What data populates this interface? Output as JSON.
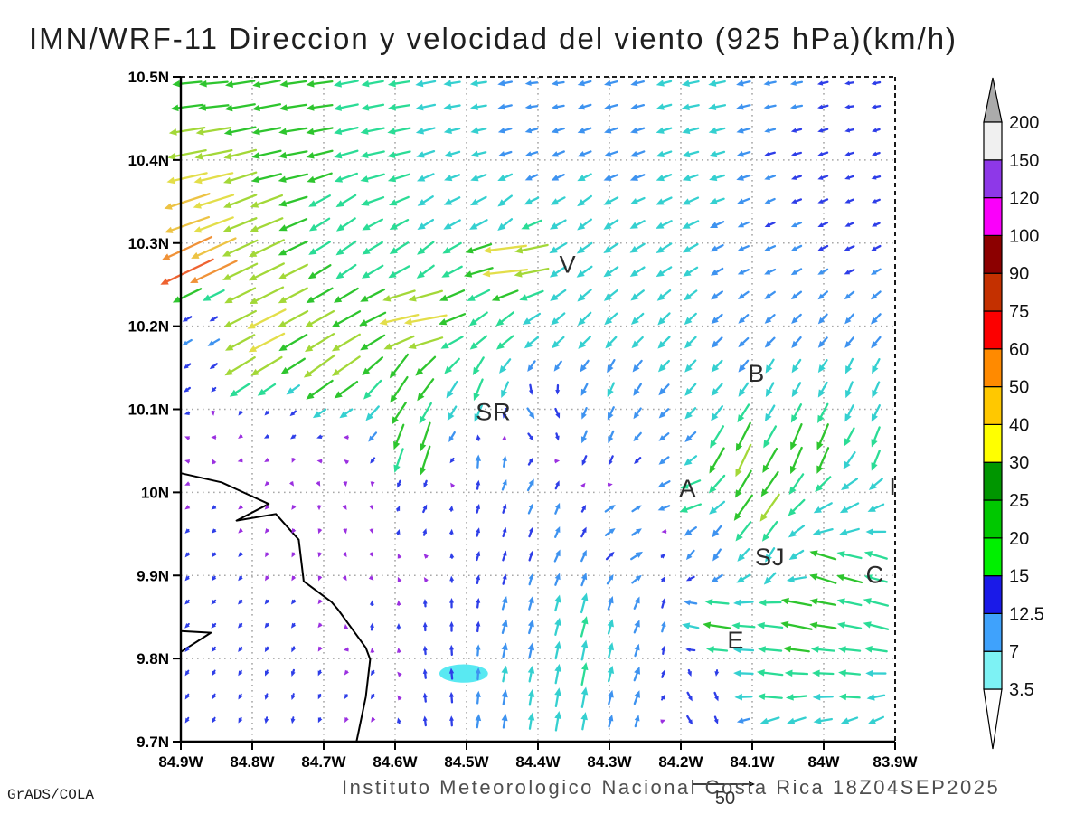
{
  "title": "IMN/WRF-11 Direccion y velocidad del viento (925 hPa)(km/h)",
  "watermark": "GrADS/COLA",
  "caption": "Instituto Meteorologico Nacional Costa Rica 18Z04SEP2025",
  "chart_data": {
    "type": "vector-field-map",
    "title": "IMN/WRF-11 Direccion y velocidad del viento (925 hPa)(km/h)",
    "units": "km/h",
    "level": "925 hPa",
    "datetime": "18Z04SEP2025",
    "source": "Instituto Meteorologico Nacional Costa Rica",
    "x_axis": {
      "tick_labels": [
        "84.9W",
        "84.8W",
        "84.7W",
        "84.6W",
        "84.5W",
        "84.4W",
        "84.3W",
        "84.2W",
        "84.1W",
        "84W",
        "83.9W"
      ],
      "lon_west_values": [
        84.9,
        84.8,
        84.7,
        84.6,
        84.5,
        84.4,
        84.3,
        84.2,
        84.1,
        84.0,
        83.9
      ]
    },
    "y_axis": {
      "tick_labels": [
        "10.5N",
        "10.4N",
        "10.3N",
        "10.2N",
        "10.1N",
        "10N",
        "9.9N",
        "9.8N",
        "9.7N"
      ],
      "lat_values": [
        10.5,
        10.4,
        10.3,
        10.2,
        10.1,
        10.0,
        9.9,
        9.8,
        9.7
      ]
    },
    "grid_lines": "dotted-gray-0.1deg",
    "colorbar": {
      "tick_values": [
        3.5,
        7,
        12.5,
        15,
        20,
        25,
        30,
        40,
        50,
        60,
        75,
        90,
        100,
        120,
        150,
        200
      ],
      "box_colors_bottom_to_top": [
        "#7df2f4",
        "#3fa2fc",
        "#1a1ae8",
        "#00f000",
        "#00c800",
        "#009600",
        "#ffff00",
        "#ffc800",
        "#ff8a00",
        "#fc0000",
        "#c43000",
        "#8c0000",
        "#fa00fa",
        "#8e38e8",
        "#f0f0f0"
      ],
      "below_min_color": "#ffffff",
      "above_max_color": "#ababab"
    },
    "arrow_speed_palette": {
      "thresholds": [
        4.5,
        10,
        14,
        19,
        24,
        30,
        36,
        42,
        47,
        53,
        58
      ],
      "colors": [
        "#9b30e0",
        "#2e3ee8",
        "#3e93f0",
        "#35d0d0",
        "#2bdc96",
        "#2ec52e",
        "#a3d838",
        "#e3de4a",
        "#edc344",
        "#f09238",
        "#ee6230",
        "#ea3b30"
      ]
    },
    "reference_arrow": {
      "speed": 50,
      "label": "50"
    },
    "grid": {
      "cols": 27,
      "rows": 28
    },
    "city_labels": [
      {
        "text": "V",
        "lon_w": 84.358,
        "lat": 10.274
      },
      {
        "text": "B",
        "lon_w": 84.094,
        "lat": 10.143
      },
      {
        "text": "SR",
        "lon_w": 84.462,
        "lat": 10.097
      },
      {
        "text": "A",
        "lon_w": 84.19,
        "lat": 10.005
      },
      {
        "text": "SJ",
        "lon_w": 84.075,
        "lat": 9.922
      },
      {
        "text": "C",
        "lon_w": 83.928,
        "lat": 9.901
      },
      {
        "text": "E",
        "lon_w": 84.123,
        "lat": 9.822
      },
      {
        "text": "I",
        "lon_w": 83.903,
        "lat": 10.007
      }
    ],
    "coastline_lon_lat": [
      [
        84.9,
        10.023
      ],
      [
        84.843,
        10.012
      ],
      [
        84.777,
        9.986
      ],
      [
        84.822,
        9.966
      ],
      [
        84.767,
        9.974
      ],
      [
        84.735,
        9.943
      ],
      [
        84.728,
        9.893
      ],
      [
        84.689,
        9.868
      ],
      [
        84.68,
        9.859
      ],
      [
        84.641,
        9.813
      ],
      [
        84.635,
        9.799
      ],
      [
        84.641,
        9.754
      ],
      [
        84.654,
        9.7
      ]
    ],
    "coast_spit_lon_lat": [
      [
        84.9,
        9.833
      ],
      [
        84.858,
        9.831
      ],
      [
        84.9,
        9.808
      ]
    ],
    "lake": {
      "lon_w": 84.504,
      "lat": 9.782,
      "rx_deg": 0.034,
      "ry_deg": 0.011,
      "color": "#59e9f2"
    },
    "wind_samples_lonw_lat_u_v": [
      [
        84.87,
        10.48,
        -26,
        -2
      ],
      [
        84.72,
        10.48,
        -24,
        -3
      ],
      [
        84.6,
        10.48,
        -20,
        -3
      ],
      [
        84.5,
        10.48,
        -15,
        -2
      ],
      [
        84.4,
        10.48,
        -11,
        -1
      ],
      [
        84.28,
        10.48,
        -12,
        -3
      ],
      [
        84.17,
        10.47,
        -16,
        -3
      ],
      [
        84.05,
        10.47,
        -11,
        -2
      ],
      [
        83.95,
        10.47,
        -8,
        -1
      ],
      [
        83.9,
        10.47,
        -8,
        -2
      ],
      [
        84.88,
        10.44,
        -33,
        -5
      ],
      [
        84.75,
        10.43,
        -26,
        -4
      ],
      [
        84.62,
        10.42,
        -22,
        -4
      ],
      [
        84.5,
        10.42,
        -14,
        -3
      ],
      [
        84.42,
        10.42,
        -11,
        -3
      ],
      [
        84.3,
        10.42,
        -12,
        -4
      ],
      [
        84.18,
        10.42,
        -15,
        -4
      ],
      [
        84.05,
        10.42,
        -9,
        -2
      ],
      [
        83.93,
        10.42,
        -7,
        -2
      ],
      [
        84.88,
        10.39,
        -36,
        -7
      ],
      [
        84.76,
        10.38,
        -27,
        -6
      ],
      [
        84.63,
        10.38,
        -22,
        -6
      ],
      [
        84.52,
        10.38,
        -14,
        -5
      ],
      [
        84.4,
        10.38,
        -11,
        -5
      ],
      [
        84.28,
        10.38,
        -13,
        -5
      ],
      [
        84.15,
        10.38,
        -14,
        -4
      ],
      [
        84.03,
        10.38,
        -9,
        -3
      ],
      [
        83.92,
        10.38,
        -8,
        -2
      ],
      [
        84.89,
        10.35,
        -42,
        -14
      ],
      [
        84.8,
        10.34,
        -30,
        -12
      ],
      [
        84.68,
        10.33,
        -17,
        -12
      ],
      [
        84.55,
        10.34,
        -14,
        -9
      ],
      [
        84.45,
        10.33,
        -12,
        -11
      ],
      [
        84.33,
        10.33,
        -13,
        -10
      ],
      [
        84.2,
        10.33,
        -15,
        -7
      ],
      [
        84.08,
        10.33,
        -9,
        -4
      ],
      [
        83.94,
        10.33,
        -7,
        -3
      ],
      [
        84.88,
        10.27,
        -50,
        -24
      ],
      [
        84.79,
        10.28,
        -33,
        -16
      ],
      [
        84.67,
        10.28,
        -18,
        -13
      ],
      [
        84.56,
        10.28,
        -15,
        -12
      ],
      [
        84.44,
        10.28,
        -44,
        -4
      ],
      [
        84.35,
        10.27,
        -14,
        -10
      ],
      [
        84.22,
        10.28,
        -14,
        -9
      ],
      [
        84.1,
        10.28,
        -10,
        -4
      ],
      [
        83.97,
        10.28,
        -9,
        -4
      ],
      [
        83.9,
        10.28,
        -9,
        -5
      ],
      [
        84.87,
        10.21,
        -5,
        -3
      ],
      [
        84.79,
        10.2,
        -36,
        -18
      ],
      [
        84.69,
        10.2,
        -27,
        -15
      ],
      [
        84.57,
        10.21,
        -40,
        -7
      ],
      [
        84.46,
        10.2,
        -16,
        -13
      ],
      [
        84.34,
        10.21,
        -12,
        -12
      ],
      [
        84.22,
        10.2,
        -11,
        -11
      ],
      [
        84.1,
        10.2,
        -9,
        -8
      ],
      [
        83.98,
        10.2,
        -8,
        -9
      ],
      [
        83.9,
        10.2,
        -9,
        -10
      ],
      [
        84.87,
        10.14,
        -5,
        -4
      ],
      [
        84.8,
        10.14,
        -33,
        -20
      ],
      [
        84.7,
        10.15,
        -29,
        -21
      ],
      [
        84.59,
        10.13,
        -16,
        -24
      ],
      [
        84.48,
        10.12,
        -8,
        -20
      ],
      [
        84.4,
        10.09,
        7,
        -10
      ],
      [
        84.3,
        10.12,
        -6,
        -13
      ],
      [
        84.18,
        10.14,
        -10,
        -11
      ],
      [
        84.07,
        10.13,
        -7,
        -13
      ],
      [
        83.95,
        10.13,
        -6,
        -15
      ],
      [
        84.84,
        10.1,
        2,
        -2
      ],
      [
        84.77,
        10.1,
        -2,
        -3
      ],
      [
        84.84,
        10.02,
        2,
        2
      ],
      [
        84.73,
        10.01,
        3,
        -2
      ],
      [
        84.88,
        10.06,
        -4,
        2
      ],
      [
        84.78,
        10.06,
        -4,
        -2
      ],
      [
        84.68,
        10.04,
        -3,
        3
      ],
      [
        84.57,
        10.05,
        -9,
        -29
      ],
      [
        84.47,
        10.04,
        1,
        13
      ],
      [
        84.42,
        10.01,
        6,
        11
      ],
      [
        84.32,
        10.06,
        -5,
        -12
      ],
      [
        84.22,
        10.05,
        -9,
        -7
      ],
      [
        84.12,
        10.04,
        -14,
        -30
      ],
      [
        84.02,
        10.05,
        -10,
        -26
      ],
      [
        83.92,
        10.05,
        -7,
        -19
      ],
      [
        84.86,
        9.99,
        -4,
        -3
      ],
      [
        84.76,
        9.99,
        -3,
        -3
      ],
      [
        84.66,
        9.99,
        2,
        -3
      ],
      [
        84.57,
        9.97,
        4,
        8
      ],
      [
        84.48,
        9.98,
        2,
        8
      ],
      [
        84.38,
        9.98,
        4,
        10
      ],
      [
        84.28,
        9.97,
        11,
        7
      ],
      [
        84.19,
        9.99,
        -20,
        -7
      ],
      [
        84.09,
        9.98,
        -18,
        -26
      ],
      [
        83.98,
        9.98,
        -17,
        -9
      ],
      [
        83.9,
        9.99,
        -14,
        -7
      ],
      [
        84.87,
        9.92,
        -3,
        -4
      ],
      [
        84.76,
        9.92,
        -2,
        -4
      ],
      [
        84.66,
        9.91,
        2,
        -3
      ],
      [
        84.56,
        9.92,
        -3,
        3
      ],
      [
        84.46,
        9.93,
        3,
        9
      ],
      [
        84.36,
        9.93,
        5,
        11
      ],
      [
        84.26,
        9.92,
        11,
        7
      ],
      [
        84.16,
        9.93,
        -7,
        -11
      ],
      [
        84.07,
        9.92,
        -8,
        -13
      ],
      [
        83.99,
        9.91,
        -25,
        9
      ],
      [
        83.91,
        9.92,
        -21,
        7
      ],
      [
        84.86,
        9.85,
        -4,
        -4
      ],
      [
        84.74,
        9.85,
        -3,
        -4
      ],
      [
        84.63,
        9.84,
        1,
        7
      ],
      [
        84.53,
        9.85,
        0,
        9
      ],
      [
        84.43,
        9.85,
        4,
        13
      ],
      [
        84.34,
        9.85,
        5,
        19
      ],
      [
        84.25,
        9.85,
        5,
        12
      ],
      [
        84.15,
        9.84,
        -26,
        4
      ],
      [
        84.04,
        9.85,
        -29,
        6
      ],
      [
        83.93,
        9.85,
        -23,
        6
      ],
      [
        84.86,
        9.77,
        -3,
        -5
      ],
      [
        84.74,
        9.78,
        -2,
        -6
      ],
      [
        84.64,
        9.77,
        -3,
        -5
      ],
      [
        84.53,
        9.78,
        -1,
        10
      ],
      [
        84.43,
        9.78,
        3,
        15
      ],
      [
        84.34,
        9.78,
        4,
        21
      ],
      [
        84.26,
        9.77,
        5,
        13
      ],
      [
        84.17,
        9.76,
        5,
        -9
      ],
      [
        84.08,
        9.77,
        -24,
        3
      ],
      [
        83.96,
        9.77,
        -20,
        2
      ],
      [
        83.9,
        9.74,
        -15,
        -4
      ],
      [
        84.86,
        9.72,
        -3,
        -5
      ],
      [
        84.76,
        9.72,
        -1,
        -6
      ],
      [
        84.66,
        9.72,
        -2,
        -4
      ],
      [
        84.56,
        9.72,
        -1,
        9
      ],
      [
        84.46,
        9.72,
        2,
        13
      ],
      [
        84.37,
        9.72,
        3,
        18
      ],
      [
        84.28,
        9.72,
        3,
        11
      ],
      [
        84.18,
        9.72,
        5,
        -8
      ],
      [
        84.06,
        9.72,
        -17,
        -6
      ],
      [
        83.94,
        9.72,
        -14,
        -7
      ]
    ]
  }
}
